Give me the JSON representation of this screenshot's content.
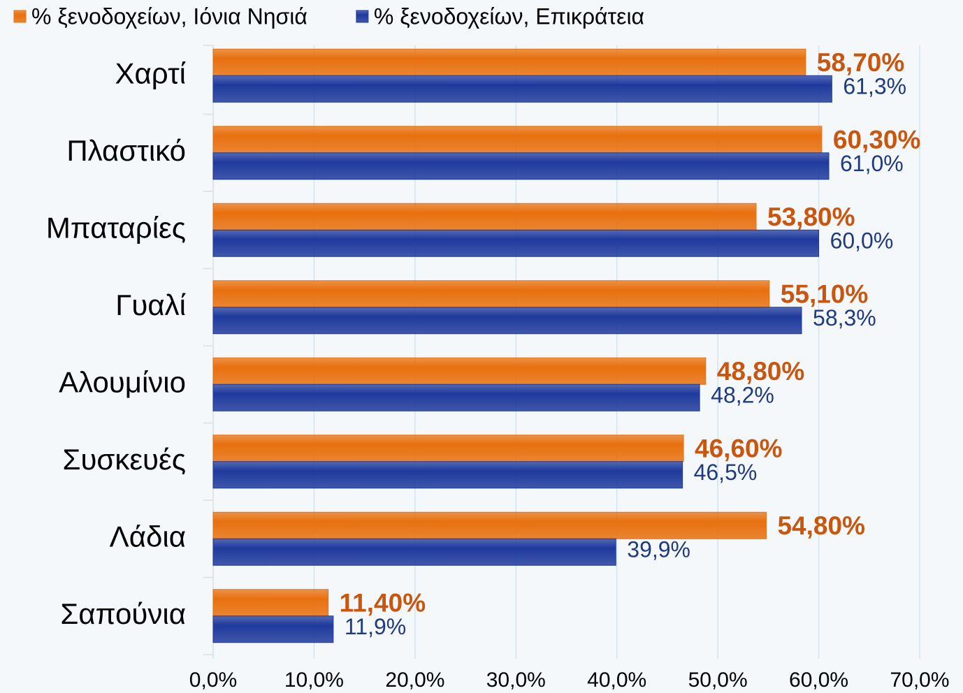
{
  "chart_data": {
    "type": "bar",
    "orientation": "horizontal",
    "categories": [
      "Χαρτί",
      "Πλαστικό",
      "Μπαταρίες",
      "Γυαλί",
      "Αλουμίνιο",
      "Συσκευές",
      "Λάδια",
      "Σαπούνια"
    ],
    "series": [
      {
        "name": "% ξενοδοχείων, Ιόνια Νησιά",
        "color": "#e8700e",
        "label_color": "#c8560e",
        "values": [
          58.7,
          60.3,
          53.8,
          55.1,
          48.8,
          46.6,
          54.8,
          11.4
        ],
        "value_labels": [
          "58,70%",
          "60,30%",
          "53,80%",
          "55,10%",
          "48,80%",
          "46,60%",
          "54,80%",
          "11,40%"
        ]
      },
      {
        "name": "% ξενοδοχείων, Επικράτεια",
        "color": "#1f3a9c",
        "label_color": "#1f3a7e",
        "values": [
          61.3,
          61.0,
          60.0,
          58.3,
          48.2,
          46.5,
          39.9,
          11.9
        ],
        "value_labels": [
          "61,3%",
          "61,0%",
          "60,0%",
          "58,3%",
          "48,2%",
          "46,5%",
          "39,9%",
          "11,9%"
        ]
      }
    ],
    "xlim": [
      0,
      70
    ],
    "xticks": [
      {
        "value": 0,
        "label": "0,0%"
      },
      {
        "value": 10,
        "label": "10,0%"
      },
      {
        "value": 20,
        "label": "20,0%"
      },
      {
        "value": 30,
        "label": "30,0%"
      },
      {
        "value": 40,
        "label": "40,0%"
      },
      {
        "value": 50,
        "label": "50,0%"
      },
      {
        "value": 60,
        "label": "60,0%"
      },
      {
        "value": 70,
        "label": "70,0%"
      }
    ],
    "grid": true,
    "legend": "top"
  }
}
